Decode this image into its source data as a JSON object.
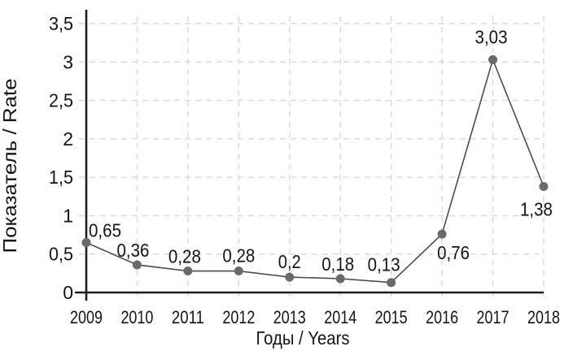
{
  "chart_data": {
    "type": "line",
    "title": "",
    "xlabel": "Годы / Years",
    "ylabel": "Показатель / Rate",
    "categories": [
      "2009",
      "2010",
      "2011",
      "2012",
      "2013",
      "2014",
      "2015",
      "2016",
      "2017",
      "2018"
    ],
    "series": [
      {
        "name": "Rate",
        "values": [
          0.65,
          0.36,
          0.28,
          0.28,
          0.2,
          0.18,
          0.13,
          0.76,
          3.03,
          1.38
        ],
        "point_labels": [
          "0,65",
          "0,36",
          "0,28",
          "0,28",
          "0,2",
          "0,18",
          "0,13",
          "0,76",
          "3,03",
          "1,38"
        ]
      }
    ],
    "ylim": [
      0,
      3.5
    ],
    "ytick_step": 0.5,
    "ytick_labels": [
      "0",
      "0,5",
      "1",
      "1,5",
      "2",
      "2,5",
      "3",
      "3,5"
    ],
    "grid": "dashed-both",
    "legend": "none",
    "decimal_separator": ",",
    "colors": {
      "background": "#ffffff",
      "line": "#4d4d4d",
      "marker": "#6a6a6a",
      "gridline": "#d9d9d9",
      "axis": "#1f1f1f",
      "text": "#141414"
    }
  }
}
